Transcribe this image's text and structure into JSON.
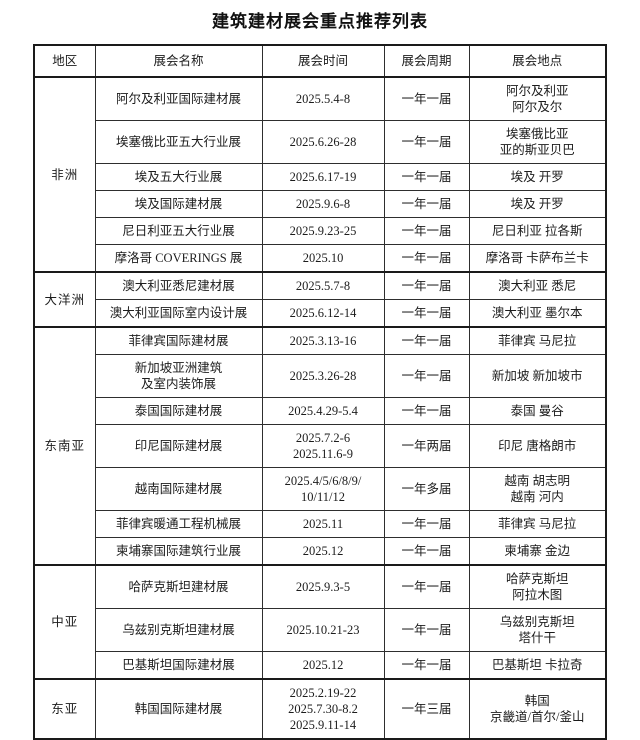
{
  "title": "建筑建材展会重点推荐列表",
  "table": {
    "headers": [
      "地区",
      "展会名称",
      "展会时间",
      "展会周期",
      "展会地点"
    ],
    "groups": [
      {
        "region": "非洲",
        "rows": [
          {
            "name": [
              "阿尔及利亚国际建材展"
            ],
            "time": [
              "2025.5.4-8"
            ],
            "cycle": "一年一届",
            "location": [
              "阿尔及利亚",
              "阿尔及尔"
            ]
          },
          {
            "name": [
              "埃塞俄比亚五大行业展"
            ],
            "time": [
              "2025.6.26-28"
            ],
            "cycle": "一年一届",
            "location": [
              "埃塞俄比亚",
              "亚的斯亚贝巴"
            ]
          },
          {
            "name": [
              "埃及五大行业展"
            ],
            "time": [
              "2025.6.17-19"
            ],
            "cycle": "一年一届",
            "location": [
              "埃及 开罗"
            ]
          },
          {
            "name": [
              "埃及国际建材展"
            ],
            "time": [
              "2025.9.6-8"
            ],
            "cycle": "一年一届",
            "location": [
              "埃及 开罗"
            ]
          },
          {
            "name": [
              "尼日利亚五大行业展"
            ],
            "time": [
              "2025.9.23-25"
            ],
            "cycle": "一年一届",
            "location": [
              "尼日利亚 拉各斯"
            ]
          },
          {
            "name": [
              "摩洛哥 COVERINGS 展"
            ],
            "time": [
              "2025.10"
            ],
            "cycle": "一年一届",
            "location": [
              "摩洛哥 卡萨布兰卡"
            ]
          }
        ]
      },
      {
        "region": "大洋洲",
        "rows": [
          {
            "name": [
              "澳大利亚悉尼建材展"
            ],
            "time": [
              "2025.5.7-8"
            ],
            "cycle": "一年一届",
            "location": [
              "澳大利亚 悉尼"
            ]
          },
          {
            "name": [
              "澳大利亚国际室内设计展"
            ],
            "time": [
              "2025.6.12-14"
            ],
            "cycle": "一年一届",
            "location": [
              "澳大利亚 墨尔本"
            ]
          }
        ]
      },
      {
        "region": "东南亚",
        "rows": [
          {
            "name": [
              "菲律宾国际建材展"
            ],
            "time": [
              "2025.3.13-16"
            ],
            "cycle": "一年一届",
            "location": [
              "菲律宾 马尼拉"
            ]
          },
          {
            "name": [
              "新加坡亚洲建筑",
              "及室内装饰展"
            ],
            "time": [
              "2025.3.26-28"
            ],
            "cycle": "一年一届",
            "location": [
              "新加坡 新加坡市"
            ]
          },
          {
            "name": [
              "泰国国际建材展"
            ],
            "time": [
              "2025.4.29-5.4"
            ],
            "cycle": "一年一届",
            "location": [
              "泰国 曼谷"
            ]
          },
          {
            "name": [
              "印尼国际建材展"
            ],
            "time": [
              "2025.7.2-6",
              "2025.11.6-9"
            ],
            "cycle": "一年两届",
            "location": [
              "印尼 唐格朗市"
            ]
          },
          {
            "name": [
              "越南国际建材展"
            ],
            "time": [
              "2025.4/5/6/8/9/",
              "10/11/12"
            ],
            "cycle": "一年多届",
            "location": [
              "越南 胡志明",
              "越南 河内"
            ]
          },
          {
            "name": [
              "菲律宾暖通工程机械展"
            ],
            "time": [
              "2025.11"
            ],
            "cycle": "一年一届",
            "location": [
              "菲律宾 马尼拉"
            ]
          },
          {
            "name": [
              "柬埔寨国际建筑行业展"
            ],
            "time": [
              "2025.12"
            ],
            "cycle": "一年一届",
            "location": [
              "柬埔寨 金边"
            ]
          }
        ]
      },
      {
        "region": "中亚",
        "rows": [
          {
            "name": [
              "哈萨克斯坦建材展"
            ],
            "time": [
              "2025.9.3-5"
            ],
            "cycle": "一年一届",
            "location": [
              "哈萨克斯坦",
              "阿拉木图"
            ]
          },
          {
            "name": [
              "乌兹别克斯坦建材展"
            ],
            "time": [
              "2025.10.21-23"
            ],
            "cycle": "一年一届",
            "location": [
              "乌兹别克斯坦",
              "塔什干"
            ]
          },
          {
            "name": [
              "巴基斯坦国际建材展"
            ],
            "time": [
              "2025.12"
            ],
            "cycle": "一年一届",
            "location": [
              "巴基斯坦 卡拉奇"
            ]
          }
        ]
      },
      {
        "region": "东亚",
        "rows": [
          {
            "name": [
              "韩国国际建材展"
            ],
            "time": [
              "2025.2.19-22",
              "2025.7.30-8.2",
              "2025.9.11-14"
            ],
            "cycle": "一年三届",
            "location": [
              "韩国",
              "京畿道/首尔/釜山"
            ]
          }
        ]
      }
    ]
  }
}
